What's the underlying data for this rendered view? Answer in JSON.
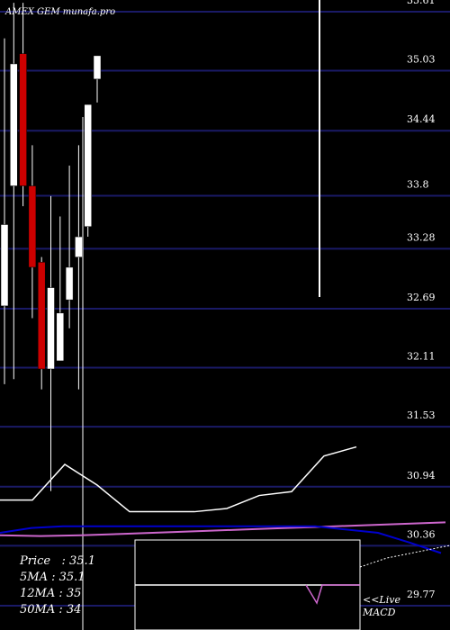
{
  "chart_data": {
    "type": "candlestick",
    "title": "AMEX GEM munafa.pro",
    "y_ticks": [
      "35.61",
      "35.03",
      "34.44",
      "33.8",
      "33.28",
      "32.69",
      "32.11",
      "31.53",
      "30.94",
      "30.36",
      "29.77"
    ],
    "y_tick_values": [
      35.61,
      35.03,
      34.44,
      33.8,
      33.28,
      32.69,
      32.11,
      31.53,
      30.94,
      30.36,
      29.77
    ],
    "ylim": [
      29.77,
      35.61
    ],
    "grid": true,
    "candles": [
      {
        "open": 32.62,
        "close": 33.42,
        "high": 35.25,
        "low": 31.85,
        "dir": "up"
      },
      {
        "open": 33.8,
        "close": 35.0,
        "high": 35.6,
        "low": 31.9,
        "dir": "up"
      },
      {
        "open": 35.1,
        "close": 33.8,
        "high": 35.6,
        "low": 33.6,
        "dir": "down"
      },
      {
        "open": 33.8,
        "close": 33.0,
        "high": 34.2,
        "low": 32.5,
        "dir": "down"
      },
      {
        "open": 33.05,
        "close": 32.0,
        "high": 33.1,
        "low": 31.8,
        "dir": "down"
      },
      {
        "open": 32.0,
        "close": 32.8,
        "high": 33.7,
        "low": 30.8,
        "dir": "up"
      },
      {
        "open": 32.08,
        "close": 32.55,
        "high": 33.5,
        "low": 32.08,
        "dir": "up"
      },
      {
        "open": 32.68,
        "close": 33.0,
        "high": 34.0,
        "low": 32.4,
        "dir": "up"
      },
      {
        "open": 33.1,
        "close": 33.3,
        "high": 34.2,
        "low": 31.8,
        "dir": "up"
      },
      {
        "open": 33.4,
        "close": 34.6,
        "high": 34.6,
        "low": 33.3,
        "dir": "up"
      },
      {
        "open": 34.85,
        "close": 35.08,
        "high": 35.08,
        "low": 34.62,
        "dir": "up"
      }
    ],
    "legend": [
      {
        "label": "Price",
        "value": "35.1"
      },
      {
        "label": "5MA",
        "value": "35.1"
      },
      {
        "label": "12MA",
        "value": "35"
      },
      {
        "label": "50MA",
        "value": "34"
      }
    ],
    "volume_line": [
      20,
      20,
      75,
      43,
      2,
      2,
      2,
      7,
      27,
      33,
      88,
      102
    ],
    "ma_line": [
      6,
      7,
      6,
      4,
      2,
      0,
      -2,
      -4,
      -6,
      -8,
      -10,
      -12
    ],
    "ma_fast_line": [
      -20,
      -26,
      -28,
      -28,
      -28,
      -28,
      -28,
      -28,
      -28,
      -28,
      -28,
      -24,
      -20,
      -8,
      5
    ],
    "macd_label": "MACD",
    "live_label": "<<Live",
    "colors": {
      "background": "#000000",
      "up": "#ffffff",
      "down": "#cc0000",
      "grid": "#1a1a66",
      "ma": "#cc66cc",
      "ma_fast": "#0000cc",
      "text": "#ffffff"
    }
  }
}
